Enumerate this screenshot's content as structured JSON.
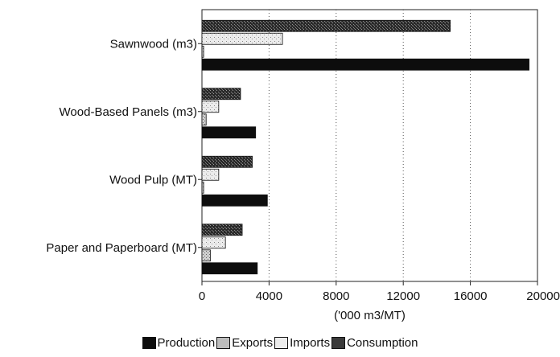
{
  "chart_data": {
    "type": "bar",
    "orientation": "horizontal",
    "categories": [
      "Sawnwood (m3)",
      "Wood-Based Panels (m3)",
      "Wood Pulp (MT)",
      "Paper and Paperboard (MT)"
    ],
    "series": [
      {
        "name": "Production",
        "values": [
          19500,
          3200,
          3900,
          3300
        ]
      },
      {
        "name": "Exports",
        "values": [
          100,
          250,
          100,
          500
        ]
      },
      {
        "name": "Imports",
        "values": [
          4800,
          1000,
          1000,
          1400
        ]
      },
      {
        "name": "Consumption",
        "values": [
          14800,
          2300,
          3000,
          2400
        ]
      }
    ],
    "xlabel": "('000 m3/MT)",
    "ylabel": "",
    "xlim": [
      0,
      20000
    ],
    "xticks": [
      "0",
      "4000",
      "8000",
      "12000",
      "16000",
      "20000"
    ],
    "grid": "vertical dotted",
    "legend_position": "bottom",
    "colors": {
      "Production": "#0d0d0d",
      "Exports": "#bdbdbd",
      "Imports": "#e4e4e4",
      "Consumption": "#3a3a3a"
    }
  }
}
